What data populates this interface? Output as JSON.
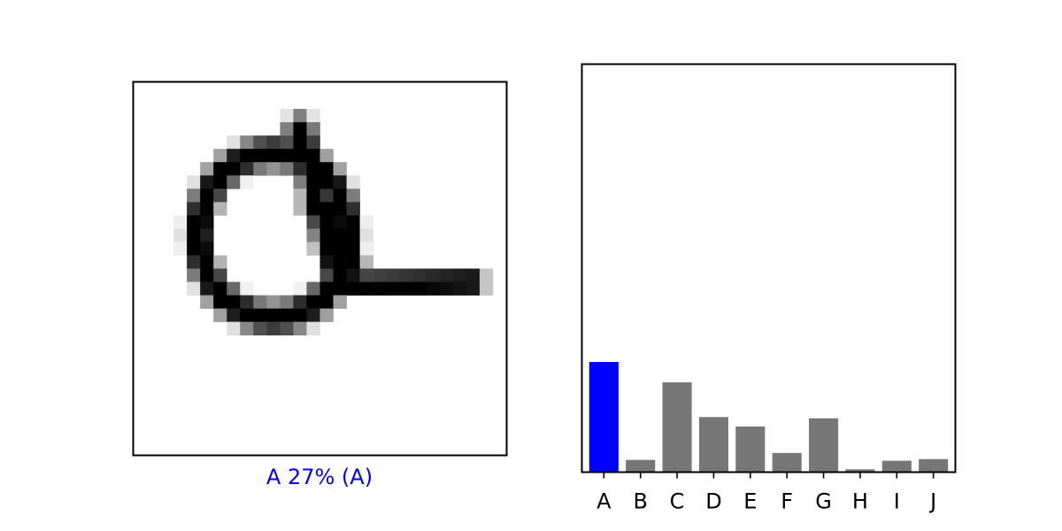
{
  "image_panel": {
    "caption": "A 27% (A)",
    "caption_color": "#0000ff",
    "grid_rows": 28,
    "grid_cols": 28
  },
  "chart_data": {
    "type": "bar",
    "categories": [
      "A",
      "B",
      "C",
      "D",
      "E",
      "F",
      "G",
      "H",
      "I",
      "J"
    ],
    "values": [
      0.27,
      0.03,
      0.22,
      0.135,
      0.112,
      0.047,
      0.132,
      0.007,
      0.028,
      0.032
    ],
    "ylim": [
      0,
      1
    ],
    "highlight_index": 0,
    "highlight_color": "#0000ff",
    "bar_color": "#777777",
    "grid": false,
    "title": "",
    "xlabel": "",
    "ylabel": ""
  }
}
